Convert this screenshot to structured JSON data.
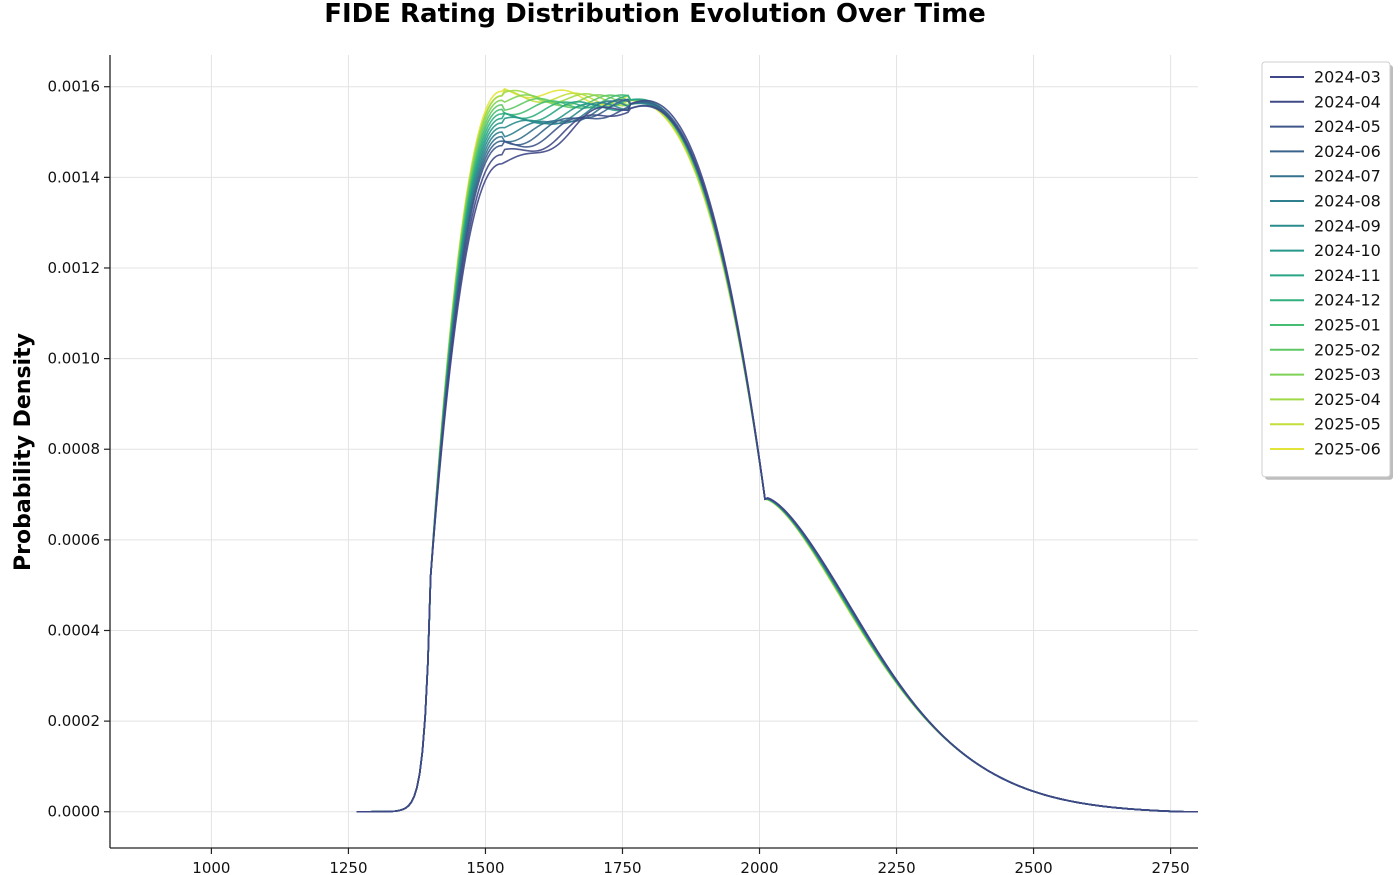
{
  "chart_data": {
    "type": "line",
    "title": "FIDE Rating Distribution Evolution Over Time",
    "xlabel": "",
    "ylabel": "Probability Density",
    "xlim": [
      815,
      2800
    ],
    "ylim": [
      -8e-05,
      0.00167
    ],
    "xticks": [
      1000,
      1250,
      1500,
      1750,
      2000,
      2250,
      2500,
      2750
    ],
    "yticks": [
      0.0,
      0.0002,
      0.0004,
      0.0006,
      0.0008,
      0.001,
      0.0012,
      0.0014,
      0.0016
    ],
    "ytick_labels": [
      "0.0000",
      "0.0002",
      "0.0004",
      "0.0006",
      "0.0008",
      "0.0010",
      "0.0012",
      "0.0014",
      "0.0016"
    ],
    "grid": true,
    "legend": {
      "position": "top-right-outside"
    },
    "series": [
      {
        "name": "2024-03",
        "color": "#3f4787",
        "peak": 0.00156,
        "left": 0.00143
      },
      {
        "name": "2024-04",
        "color": "#404a86",
        "peak": 0.00155,
        "left": 0.00145
      },
      {
        "name": "2024-05",
        "color": "#3e5689",
        "peak": 0.00155,
        "left": 0.00147
      },
      {
        "name": "2024-06",
        "color": "#3a638c",
        "peak": 0.00156,
        "left": 0.00148
      },
      {
        "name": "2024-07",
        "color": "#35728d",
        "peak": 0.00156,
        "left": 0.00149
      },
      {
        "name": "2024-08",
        "color": "#2f7f8e",
        "peak": 0.00156,
        "left": 0.0015
      },
      {
        "name": "2024-09",
        "color": "#2a8c8c",
        "peak": 0.00156,
        "left": 0.00151
      },
      {
        "name": "2024-10",
        "color": "#26988a",
        "peak": 0.00156,
        "left": 0.00152
      },
      {
        "name": "2024-11",
        "color": "#28a585",
        "peak": 0.00157,
        "left": 0.00153
      },
      {
        "name": "2024-12",
        "color": "#30b17e",
        "peak": 0.00157,
        "left": 0.00154
      },
      {
        "name": "2025-01",
        "color": "#45bd72",
        "peak": 0.00157,
        "left": 0.00155
      },
      {
        "name": "2025-02",
        "color": "#5fc865",
        "peak": 0.00157,
        "left": 0.00156
      },
      {
        "name": "2025-03",
        "color": "#7ed257",
        "peak": 0.00157,
        "left": 0.00157
      },
      {
        "name": "2025-04",
        "color": "#a0da48",
        "peak": 0.00157,
        "left": 0.00158
      },
      {
        "name": "2025-05",
        "color": "#c2df3a",
        "peak": 0.00157,
        "left": 0.00158
      },
      {
        "name": "2025-06",
        "color": "#e3e43a",
        "peak": 0.00157,
        "left": 0.00159
      }
    ]
  }
}
